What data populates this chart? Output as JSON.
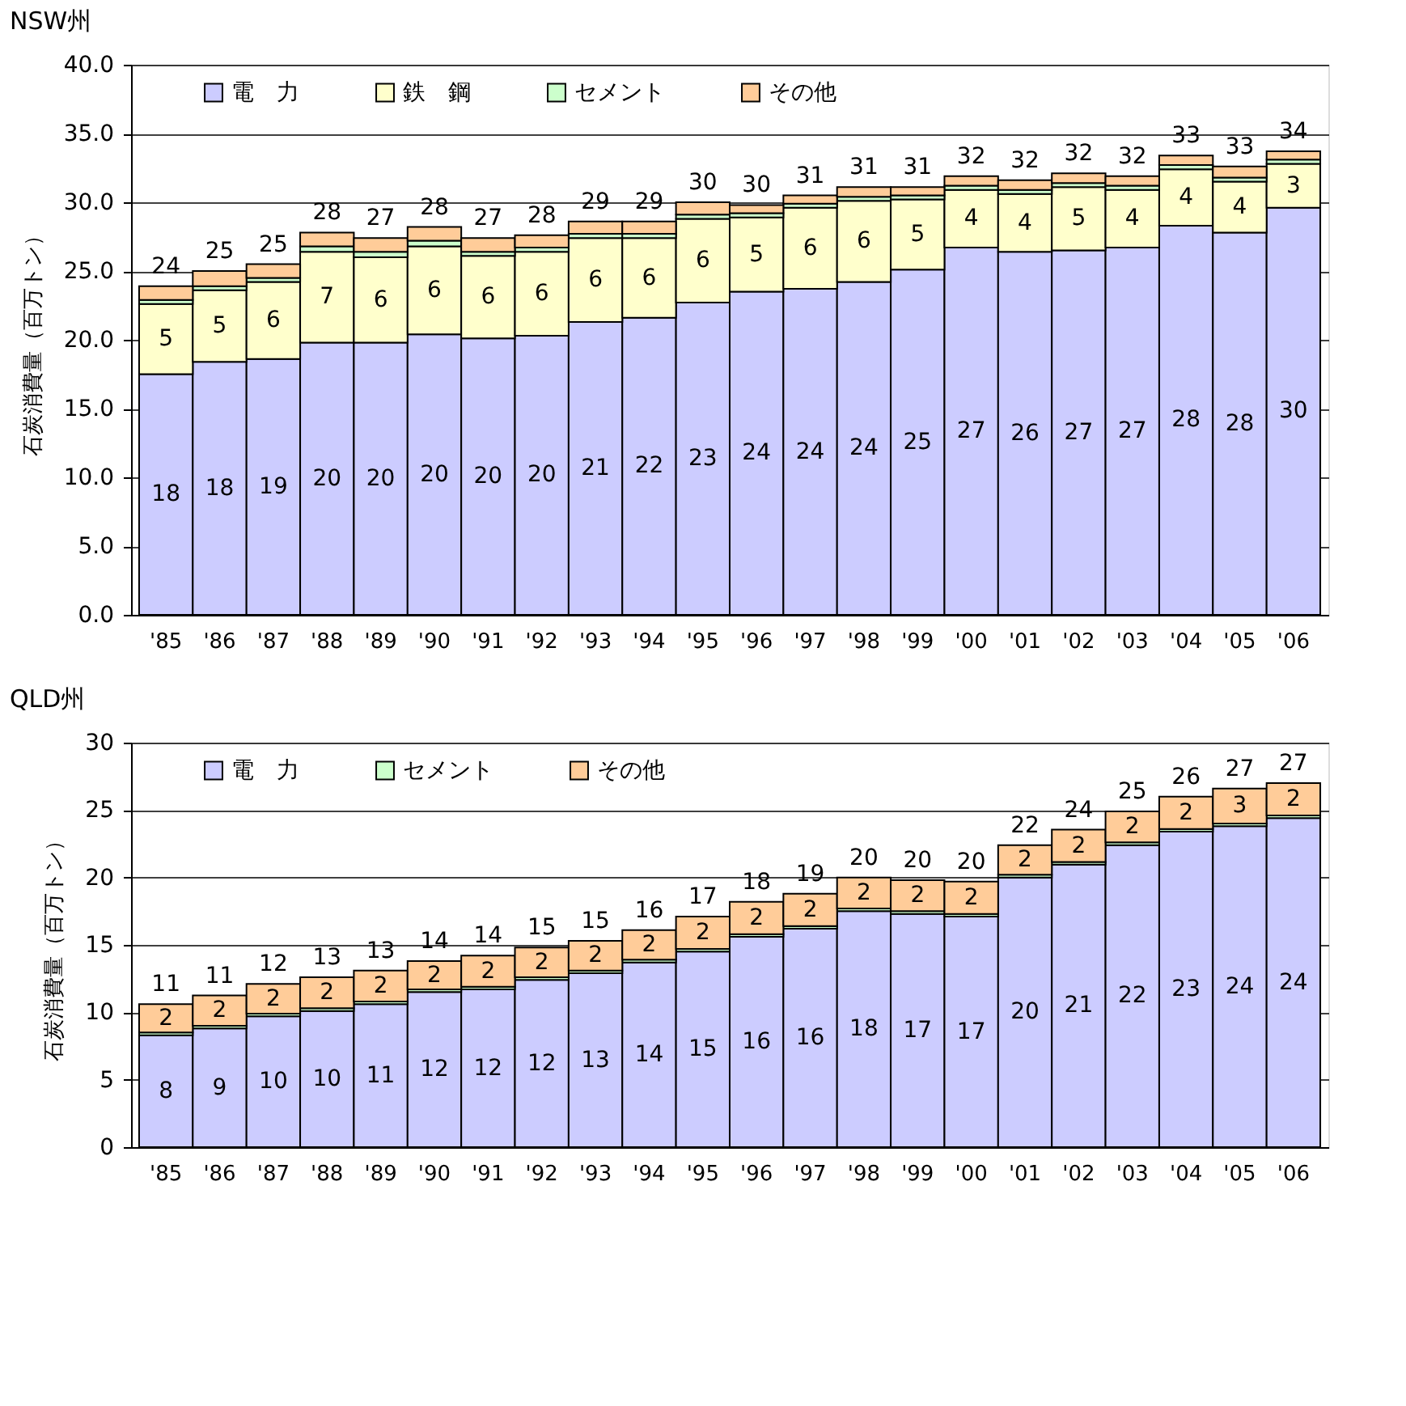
{
  "chart_data": [
    {
      "type": "bar",
      "stacked": true,
      "title": "NSW州",
      "ylabel": "石炭消費量（百万トン）",
      "legend": "top",
      "grid": "y",
      "categories": [
        "'85",
        "'86",
        "'87",
        "'88",
        "'89",
        "'90",
        "'91",
        "'92",
        "'93",
        "'94",
        "'95",
        "'96",
        "'97",
        "'98",
        "'99",
        "'00",
        "'01",
        "'02",
        "'03",
        "'04",
        "'05",
        "'06"
      ],
      "ylim": [
        0,
        40
      ],
      "yticks": [
        {
          "value": 0,
          "label": "0.0"
        },
        {
          "value": 5,
          "label": "5.0"
        },
        {
          "value": 10,
          "label": "10.0"
        },
        {
          "value": 15,
          "label": "15.0"
        },
        {
          "value": 20,
          "label": "20.0"
        },
        {
          "value": 25,
          "label": "25.0"
        },
        {
          "value": 30,
          "label": "30.0"
        },
        {
          "value": 35,
          "label": "35.0"
        },
        {
          "value": 40,
          "label": "40.0"
        }
      ],
      "series": [
        {
          "name": "電　力",
          "color": "#ccccff",
          "values": [
            17.5,
            18.4,
            18.6,
            19.8,
            19.8,
            20.4,
            20.1,
            20.3,
            21.3,
            21.6,
            22.7,
            23.5,
            23.7,
            24.2,
            25.1,
            26.7,
            26.4,
            26.5,
            26.7,
            28.3,
            27.8,
            29.6
          ],
          "value_labels": [
            "18",
            "18",
            "19",
            "20",
            "20",
            "20",
            "20",
            "20",
            "21",
            "22",
            "23",
            "24",
            "24",
            "24",
            "25",
            "27",
            "26",
            "27",
            "27",
            "28",
            "28",
            "30"
          ]
        },
        {
          "name": "鉄　鋼",
          "color": "#ffffcc",
          "values": [
            5.1,
            5.2,
            5.6,
            6.6,
            6.2,
            6.4,
            6.0,
            6.1,
            6.1,
            5.8,
            6.1,
            5.4,
            5.9,
            5.9,
            5.1,
            4.2,
            4.2,
            4.6,
            4.2,
            4.1,
            3.7,
            3.2
          ],
          "value_labels": [
            "5",
            "5",
            "6",
            "7",
            "6",
            "6",
            "6",
            "6",
            "6",
            "6",
            "6",
            "5",
            "6",
            "6",
            "5",
            "4",
            "4",
            "5",
            "4",
            "4",
            "4",
            "3"
          ]
        },
        {
          "name": "セメント",
          "color": "#ccffcc",
          "values": [
            0.3,
            0.3,
            0.3,
            0.4,
            0.4,
            0.4,
            0.3,
            0.3,
            0.3,
            0.3,
            0.3,
            0.3,
            0.3,
            0.3,
            0.3,
            0.3,
            0.3,
            0.3,
            0.3,
            0.3,
            0.3,
            0.3
          ]
        },
        {
          "name": "その他",
          "color": "#ffcc99",
          "values": [
            1.0,
            1.1,
            1.0,
            1.0,
            1.0,
            1.0,
            1.0,
            0.9,
            0.9,
            0.9,
            0.9,
            0.6,
            0.6,
            0.7,
            0.6,
            0.7,
            0.7,
            0.7,
            0.7,
            0.7,
            0.8,
            0.6
          ]
        }
      ],
      "totals": [
        "24",
        "25",
        "25",
        "28",
        "27",
        "28",
        "27",
        "28",
        "29",
        "29",
        "30",
        "30",
        "31",
        "31",
        "31",
        "32",
        "32",
        "32",
        "32",
        "33",
        "33",
        "34"
      ]
    },
    {
      "type": "bar",
      "stacked": true,
      "title": "QLD州",
      "ylabel": "石炭消費量（百万トン）",
      "legend": "top",
      "grid": "y",
      "categories": [
        "'85",
        "'86",
        "'87",
        "'88",
        "'89",
        "'90",
        "'91",
        "'92",
        "'93",
        "'94",
        "'95",
        "'96",
        "'97",
        "'98",
        "'99",
        "'00",
        "'01",
        "'02",
        "'03",
        "'04",
        "'05",
        "'06"
      ],
      "ylim": [
        0,
        30
      ],
      "yticks": [
        0,
        5,
        10,
        15,
        20,
        25,
        30
      ],
      "series": [
        {
          "name": "電　力",
          "color": "#ccccff",
          "values": [
            8.3,
            8.8,
            9.7,
            10.1,
            10.6,
            11.5,
            11.7,
            12.4,
            12.9,
            13.7,
            14.5,
            15.6,
            16.2,
            17.5,
            17.3,
            17.1,
            20.0,
            20.95,
            22.4,
            23.4,
            23.8,
            24.4
          ],
          "value_labels": [
            "8",
            "9",
            "10",
            "10",
            "11",
            "12",
            "12",
            "12",
            "13",
            "14",
            "15",
            "16",
            "16",
            "18",
            "17",
            "17",
            "20",
            "21",
            "22",
            "23",
            "24",
            "24"
          ]
        },
        {
          "name": "セメント",
          "color": "#ccffcc",
          "values": [
            0.2,
            0.2,
            0.2,
            0.2,
            0.2,
            0.2,
            0.2,
            0.2,
            0.2,
            0.2,
            0.2,
            0.2,
            0.2,
            0.2,
            0.2,
            0.2,
            0.2,
            0.2,
            0.2,
            0.2,
            0.2,
            0.2
          ]
        },
        {
          "name": "その他",
          "color": "#ffcc99",
          "values": [
            2.1,
            2.25,
            2.2,
            2.3,
            2.3,
            2.1,
            2.3,
            2.2,
            2.2,
            2.2,
            2.4,
            2.4,
            2.4,
            2.3,
            2.3,
            2.4,
            2.2,
            2.4,
            2.3,
            2.4,
            2.6,
            2.4
          ],
          "value_labels": [
            "2",
            "2",
            "2",
            "2",
            "2",
            "2",
            "2",
            "2",
            "2",
            "2",
            "2",
            "2",
            "2",
            "2",
            "2",
            "2",
            "2",
            "2",
            "2",
            "2",
            "3",
            "2"
          ]
        }
      ],
      "totals": [
        "11",
        "11",
        "12",
        "13",
        "13",
        "14",
        "14",
        "15",
        "15",
        "16",
        "17",
        "18",
        "19",
        "20",
        "20",
        "20",
        "22",
        "24",
        "25",
        "26",
        "27",
        "27"
      ]
    }
  ]
}
